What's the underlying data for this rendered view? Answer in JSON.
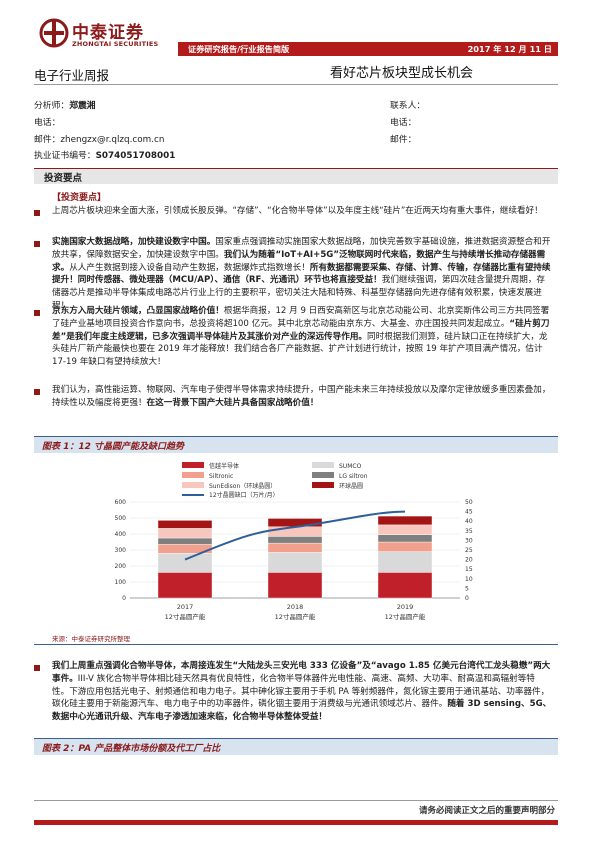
{
  "header": {
    "logo_text": "中泰证券",
    "logo_sub": "ZHONGTAI SECURITIES",
    "banner_left": "证券研究报告/行业报告简版",
    "banner_date": "2017 年 12 月 11 日",
    "report_type": "电子行业周报",
    "report_title": "看好芯片板块型成长机会"
  },
  "meta": {
    "analyst_label": "分析师：",
    "analyst_name": "郑震湘",
    "phone_label": "电话：",
    "email_label": "邮件：",
    "email_value": "zhengzx@r.qlzq.com.cn",
    "cert_label": "执业证书编号：",
    "cert_value": "S074051708001",
    "contact_label": "联系人：",
    "phone_label_r": "电话：",
    "email_label_r": "邮件："
  },
  "section": {
    "title": "投资要点",
    "sub_head": "【投资要点】"
  },
  "paragraphs": {
    "p1": "上周芯片板块迎来全面大涨，引领成长股反弹。“存储”、“化合物半导体”以及年度主线“硅片”在近两天均有重大事件，继续看好！",
    "p2a": "实施国家大数据战略，加快建设数字中国。",
    "p2b": "国家重点强调推动实施国家大数据战略，加快完善数字基础设施，推进数据资源整合和开放共享，保障数据安全，加快建设数字中国。",
    "p2c": "我们认为随着“IoT+AI+5G”泛物联网时代来临，数据产生与持续增长推动存储器需求。",
    "p2d": "从人产生数据到接入设备自动产生数据，数据爆炸式指数增长！",
    "p2e": "所有数据都需要采集、存储、计算、传输，存储器比重有望持续提升！同时传感器、微处理器（MCU/AP）、通信（RF、光通讯）环节也将直接受益！",
    "p2f": "我们继续强调，第四次硅含量提升周期，存储器芯片是推动半导体集成电路芯片行业上行的主要积平，密切关注大陆和特殊、科基型存储器向先进存储有效积累，快速发展进程！",
    "p3a": "京东方入局大硅片领域，凸显国家战略价值！",
    "p3b": "根据华商报，12 月 9 日西安高新区与北京芯动能公司、北京奕斯伟公司三方共同签署了硅产业基地项目投资合作意向书，总投资将超100 亿元。其中北京芯动能由京东方、大基金、亦庄国投共同发起成立。",
    "p3c": "“硅片剪刀差”是我们年度主线逻辑，已多次强调半导体硅片及其涨价对产业的深远传导作用。",
    "p3d": "同时根据我们测算，硅片缺口正在持续扩大，龙头硅片厂新产能最快也要在 2019 年才能释放！我们结合各厂产能数据、扩产计划进行统计，按照 19 年扩产项目满产情况，估计 17-19 年缺口有望持续放大！",
    "p4a": "我们认为，高性能运算、物联网、汽车电子使得半导体需求持续提升，中国产能未来三年持续投放以及摩尔定律放缓多重因素叠加，持续性以及幅度将更强！",
    "p4b": "在这一背景下国产大硅片具备国家战略价值！",
    "p5a": "我们上周重点强调化合物半导体，本周接连发生“大陆龙头三安光电 333 亿设备”及“avago 1.85 亿美元台湾代工龙头稳懋”两大事件。",
    "p5b": "III-V 族化合物半导体相比硅天然具有优良特性，化合物半导体器件光电性能、高速、高频、大功率、耐高温和高辐射等特性。下游应用包括光电子、射频通信和电力电子。其中砷化镓主要用于手机 PA 等射频器件，氮化镓主要用于通讯基站、功率器件，碳化硅主要用于新能源汽车、电力电子中的功率器件，磷化铟主要用于消费级与光通讯领域芯片、器件。",
    "p5c": "随着 3D sensing、5G、数据中心光通讯升级、汽车电子渗透加速来临，化合物半导体整体受益！"
  },
  "figure1": {
    "title": "图表 1：12 寸晶圆产能及缺口趋势",
    "source": "来源：中泰证券研究所整理"
  },
  "figure2": {
    "title": "图表 2：PA 产品整体市场份额及代工厂占比"
  },
  "footer": {
    "text": "请务必阅读正文之后的重要声明部分"
  },
  "chart_data": {
    "type": "bar",
    "stacked": true,
    "categories": [
      "2017\n12寸晶圆产能",
      "2018\n12寸晶圆产能",
      "2019\n12寸晶圆产能"
    ],
    "category_years": [
      "2017",
      "2018",
      "2019"
    ],
    "category_sub": "12寸晶圆产能",
    "series": [
      {
        "name": "信越半导体",
        "color": "#c0202a",
        "values": [
          160,
          160,
          160
        ]
      },
      {
        "name": "SUMCO",
        "color": "#d9d9d9",
        "values": [
          120,
          125,
          130
        ]
      },
      {
        "name": "Siltronic",
        "color": "#f0a08c",
        "values": [
          55,
          58,
          60
        ]
      },
      {
        "name": "LG siltron",
        "color": "#7f7f7f",
        "values": [
          40,
          42,
          45
        ]
      },
      {
        "name": "SunEdison（环球晶圆）",
        "color": "#f7c7be",
        "values": [
          60,
          60,
          62
        ]
      },
      {
        "name": "环球晶圆",
        "color": "#a31515",
        "values": [
          50,
          52,
          55
        ]
      }
    ],
    "line": {
      "name": "12寸晶圆缺口（万片/月）",
      "color": "#2e5f9a",
      "values": [
        20,
        37,
        45
      ]
    },
    "ylim": [
      0,
      600
    ],
    "y_ticks": [
      0,
      100,
      200,
      300,
      400,
      500,
      600
    ],
    "y2lim": [
      0,
      50
    ],
    "y2_ticks": [
      0,
      5,
      10,
      15,
      20,
      25,
      30,
      35,
      40,
      45,
      50
    ],
    "legend_position": "top"
  }
}
